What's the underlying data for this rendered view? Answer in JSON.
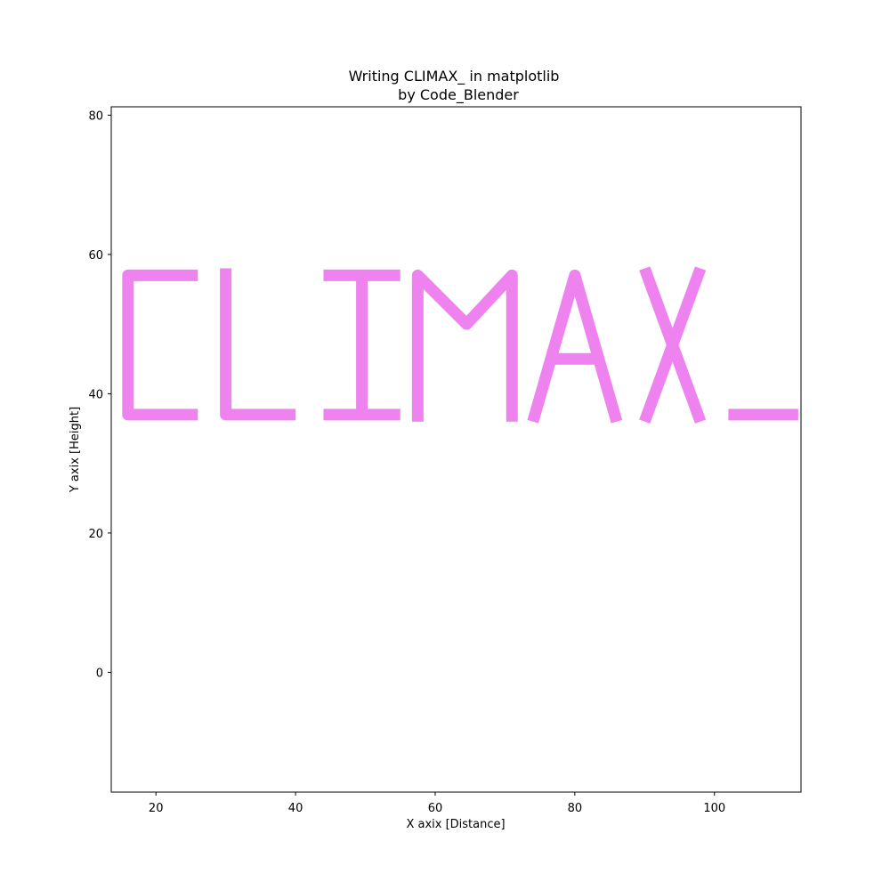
{
  "chart_data": {
    "type": "line",
    "title": "Writing CLIMAX_ in matplotlib",
    "subtitle": "by Code_Blender",
    "xlabel": "X axix [Distance]",
    "ylabel": "Y axix [Height]",
    "xlim": [
      13.6,
      112.4
    ],
    "ylim": [
      -17.2,
      81.2
    ],
    "xticks": [
      20,
      40,
      60,
      80,
      100
    ],
    "yticks": [
      0,
      20,
      40,
      60,
      80
    ],
    "grid": false,
    "line_color": "#ee82ee",
    "series": [
      {
        "x": [
          26,
          16,
          16,
          26
        ],
        "y": [
          57,
          57,
          37,
          37
        ]
      },
      {
        "x": [
          30,
          30,
          40
        ],
        "y": [
          58,
          37,
          37
        ]
      },
      {
        "x": [
          44,
          55
        ],
        "y": [
          57,
          57
        ]
      },
      {
        "x": [
          44,
          55
        ],
        "y": [
          37,
          37
        ]
      },
      {
        "x": [
          49.5,
          49.5
        ],
        "y": [
          57,
          37
        ]
      },
      {
        "x": [
          57.5,
          57.5,
          64.5,
          71,
          71
        ],
        "y": [
          36,
          57,
          50,
          57,
          36
        ]
      },
      {
        "x": [
          74,
          80,
          86
        ],
        "y": [
          36,
          57,
          36
        ]
      },
      {
        "x": [
          76.5,
          84
        ],
        "y": [
          45,
          45
        ]
      },
      {
        "x": [
          90,
          98
        ],
        "y": [
          58,
          36
        ]
      },
      {
        "x": [
          98,
          90
        ],
        "y": [
          58,
          36
        ]
      },
      {
        "x": [
          102,
          112
        ],
        "y": [
          37,
          37
        ]
      }
    ]
  }
}
